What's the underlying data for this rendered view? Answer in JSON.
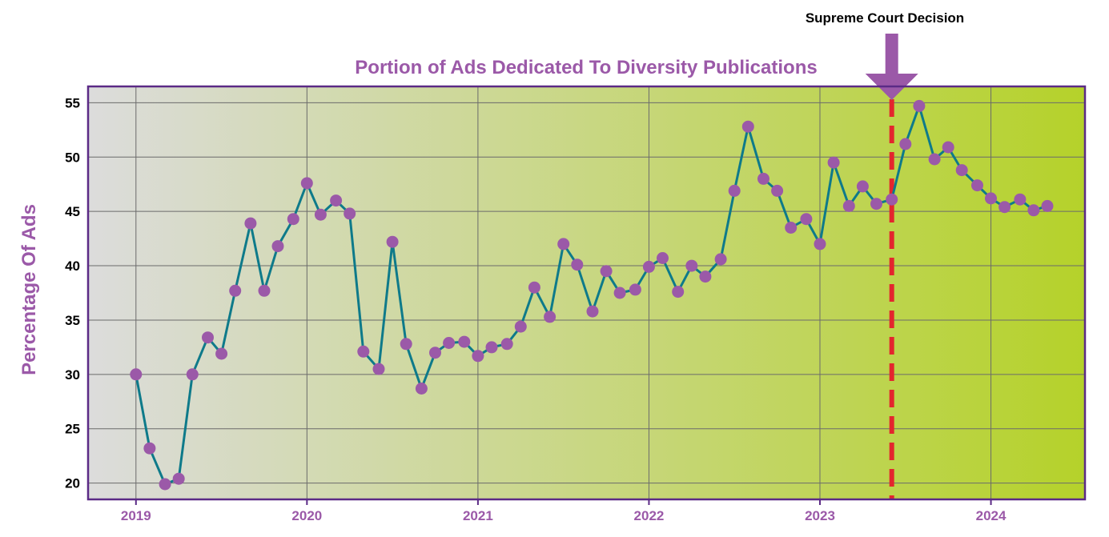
{
  "chart_data": {
    "type": "line",
    "title": "Portion of Ads Dedicated To Diversity Publications",
    "xlabel": "",
    "ylabel": "Percentage Of Ads",
    "x_tick_labels": [
      "2019",
      "2020",
      "2021",
      "2022",
      "2023",
      "2024"
    ],
    "y_ticks": [
      20,
      25,
      30,
      35,
      40,
      45,
      50,
      55
    ],
    "ylim": [
      18.5,
      56.5
    ],
    "xlim": [
      2018.72,
      2024.55
    ],
    "grid": true,
    "annotation": {
      "label": "Supreme Court Decision",
      "x": 2023.42,
      "line_color": "#e3262d",
      "arrow_color": "#9b59a8"
    },
    "colors": {
      "line": "#0e7a8a",
      "marker": "#9b59a8",
      "title": "#9b59a8",
      "ylabel": "#9b59a8",
      "x_tick": "#9b59a8",
      "frame": "#5b2a86",
      "bg_start": "#dcdcdc",
      "bg_end": "#b5d22a"
    },
    "series": [
      {
        "name": "Percentage Of Ads",
        "points": [
          [
            2019.0,
            30.0
          ],
          [
            2019.08,
            23.2
          ],
          [
            2019.17,
            19.9
          ],
          [
            2019.25,
            20.4
          ],
          [
            2019.33,
            30.0
          ],
          [
            2019.42,
            33.4
          ],
          [
            2019.5,
            31.9
          ],
          [
            2019.58,
            37.7
          ],
          [
            2019.67,
            43.9
          ],
          [
            2019.75,
            37.7
          ],
          [
            2019.83,
            41.8
          ],
          [
            2019.92,
            44.3
          ],
          [
            2020.0,
            47.6
          ],
          [
            2020.08,
            44.7
          ],
          [
            2020.17,
            46.0
          ],
          [
            2020.25,
            44.8
          ],
          [
            2020.33,
            32.1
          ],
          [
            2020.42,
            30.5
          ],
          [
            2020.5,
            42.2
          ],
          [
            2020.58,
            32.8
          ],
          [
            2020.67,
            28.7
          ],
          [
            2020.75,
            32.0
          ],
          [
            2020.83,
            32.9
          ],
          [
            2020.92,
            33.0
          ],
          [
            2021.0,
            31.7
          ],
          [
            2021.08,
            32.5
          ],
          [
            2021.17,
            32.8
          ],
          [
            2021.25,
            34.4
          ],
          [
            2021.33,
            38.0
          ],
          [
            2021.42,
            35.3
          ],
          [
            2021.5,
            42.0
          ],
          [
            2021.58,
            40.1
          ],
          [
            2021.67,
            35.8
          ],
          [
            2021.75,
            39.5
          ],
          [
            2021.83,
            37.5
          ],
          [
            2021.92,
            37.8
          ],
          [
            2022.0,
            39.9
          ],
          [
            2022.08,
            40.7
          ],
          [
            2022.17,
            37.6
          ],
          [
            2022.25,
            40.0
          ],
          [
            2022.33,
            39.0
          ],
          [
            2022.42,
            40.6
          ],
          [
            2022.5,
            46.9
          ],
          [
            2022.58,
            52.8
          ],
          [
            2022.67,
            48.0
          ],
          [
            2022.75,
            46.9
          ],
          [
            2022.83,
            43.5
          ],
          [
            2022.92,
            44.3
          ],
          [
            2023.0,
            42.0
          ],
          [
            2023.08,
            49.5
          ],
          [
            2023.17,
            45.5
          ],
          [
            2023.25,
            47.3
          ],
          [
            2023.33,
            45.7
          ],
          [
            2023.42,
            46.1
          ],
          [
            2023.5,
            51.2
          ],
          [
            2023.58,
            54.7
          ],
          [
            2023.67,
            49.8
          ],
          [
            2023.75,
            50.9
          ],
          [
            2023.83,
            48.8
          ],
          [
            2023.92,
            47.4
          ],
          [
            2024.0,
            46.2
          ],
          [
            2024.08,
            45.4
          ],
          [
            2024.17,
            46.1
          ],
          [
            2024.25,
            45.1
          ],
          [
            2024.33,
            45.5
          ]
        ]
      }
    ]
  }
}
